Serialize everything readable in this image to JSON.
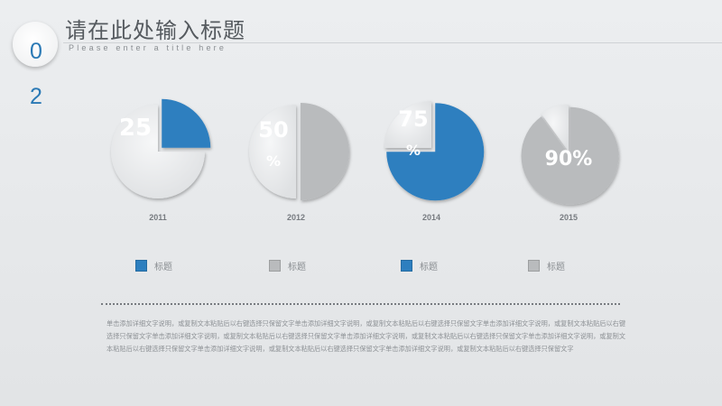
{
  "header": {
    "number": "02",
    "title": "请在此处输入标题",
    "subtitle": "Please enter a title here"
  },
  "chart_data": {
    "type": "pie",
    "categories": [
      "2011",
      "2012",
      "2014",
      "2015"
    ],
    "values": [
      25,
      50,
      75,
      90
    ],
    "value_labels": [
      "25",
      "50%",
      "75%",
      "90%"
    ],
    "colors": [
      "#2d7fbf",
      "#b9bbbd",
      "#2d7fbf",
      "#b9bbbd"
    ]
  },
  "legend": [
    {
      "label": "标题",
      "color": "#2d7fbf"
    },
    {
      "label": "标题",
      "color": "#b9bbbd"
    },
    {
      "label": "标题",
      "color": "#2d7fbf"
    },
    {
      "label": "标题",
      "color": "#b9bbbd"
    }
  ],
  "body": {
    "paragraph": "单击添加详细文字说明，或复制文本粘贴后以右键选择只保留文字单击添加详细文字说明，或复制文本粘贴后以右键选择只保留文字单击添加详细文字说明，或复制文本粘贴后以右键选择只保留文字单击添加详细文字说明，或复制文本粘贴后以右键选择只保留文字单击添加详细文字说明，或复制文本粘贴后以右键选择只保留文字单击添加详细文字说明，或复制文本粘贴后以右键选择只保留文字单击添加详细文字说明，或复制文本粘贴后以右键选择只保留文字单击添加详细文字说明，或复制文本粘贴后以右键选择只保留文字"
  }
}
